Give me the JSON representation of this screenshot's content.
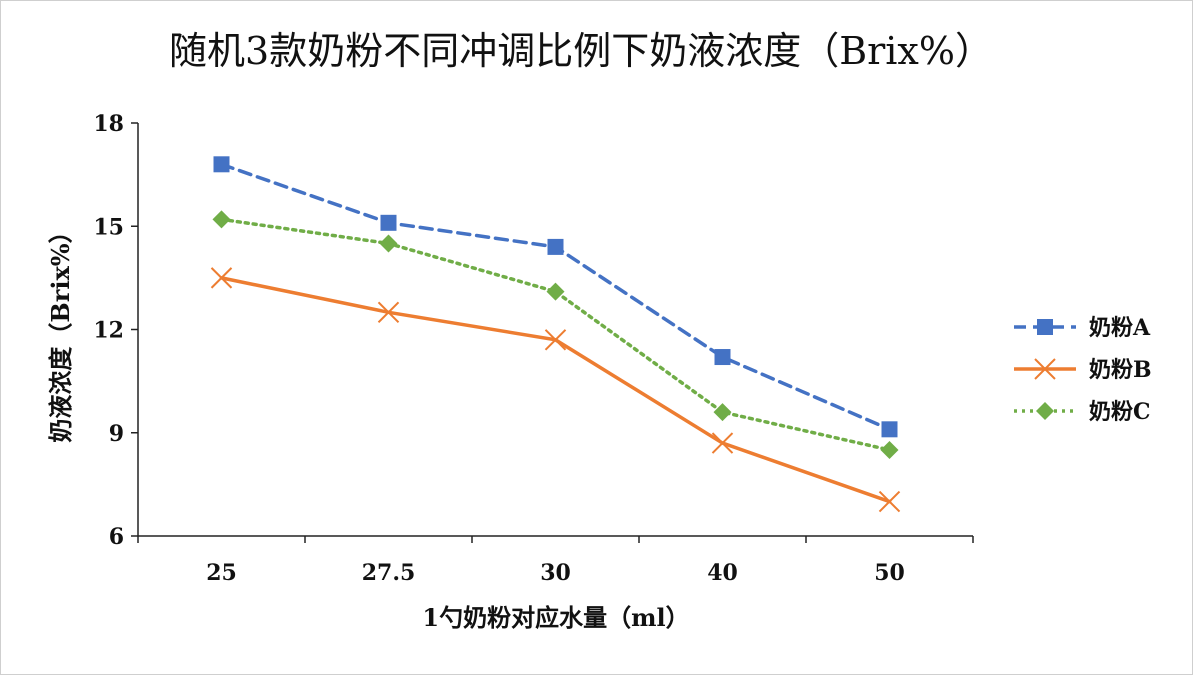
{
  "chart_data": {
    "type": "line",
    "title": "随机3款奶粉不同冲调比例下奶液浓度（Brix%）",
    "xlabel": "1勺奶粉对应水量（ml）",
    "ylabel": "奶液浓度（Brix%）",
    "categories": [
      "25",
      "27.5",
      "30",
      "40",
      "50"
    ],
    "ylim": [
      6,
      18
    ],
    "yticks": [
      "6",
      "9",
      "12",
      "15",
      "18"
    ],
    "grid": false,
    "legend_position": "right",
    "series": [
      {
        "name": "奶粉A",
        "values": [
          16.8,
          15.1,
          14.4,
          11.2,
          9.1
        ],
        "color": "#4472c4",
        "line_style": "dashed",
        "marker": "square"
      },
      {
        "name": "奶粉B",
        "values": [
          13.5,
          12.5,
          11.7,
          8.7,
          7.0
        ],
        "color": "#ed7d31",
        "line_style": "solid",
        "marker": "x"
      },
      {
        "name": "奶粉C",
        "values": [
          15.2,
          14.5,
          13.1,
          9.6,
          8.5
        ],
        "color": "#70ad47",
        "line_style": "dotted",
        "marker": "diamond"
      }
    ]
  }
}
